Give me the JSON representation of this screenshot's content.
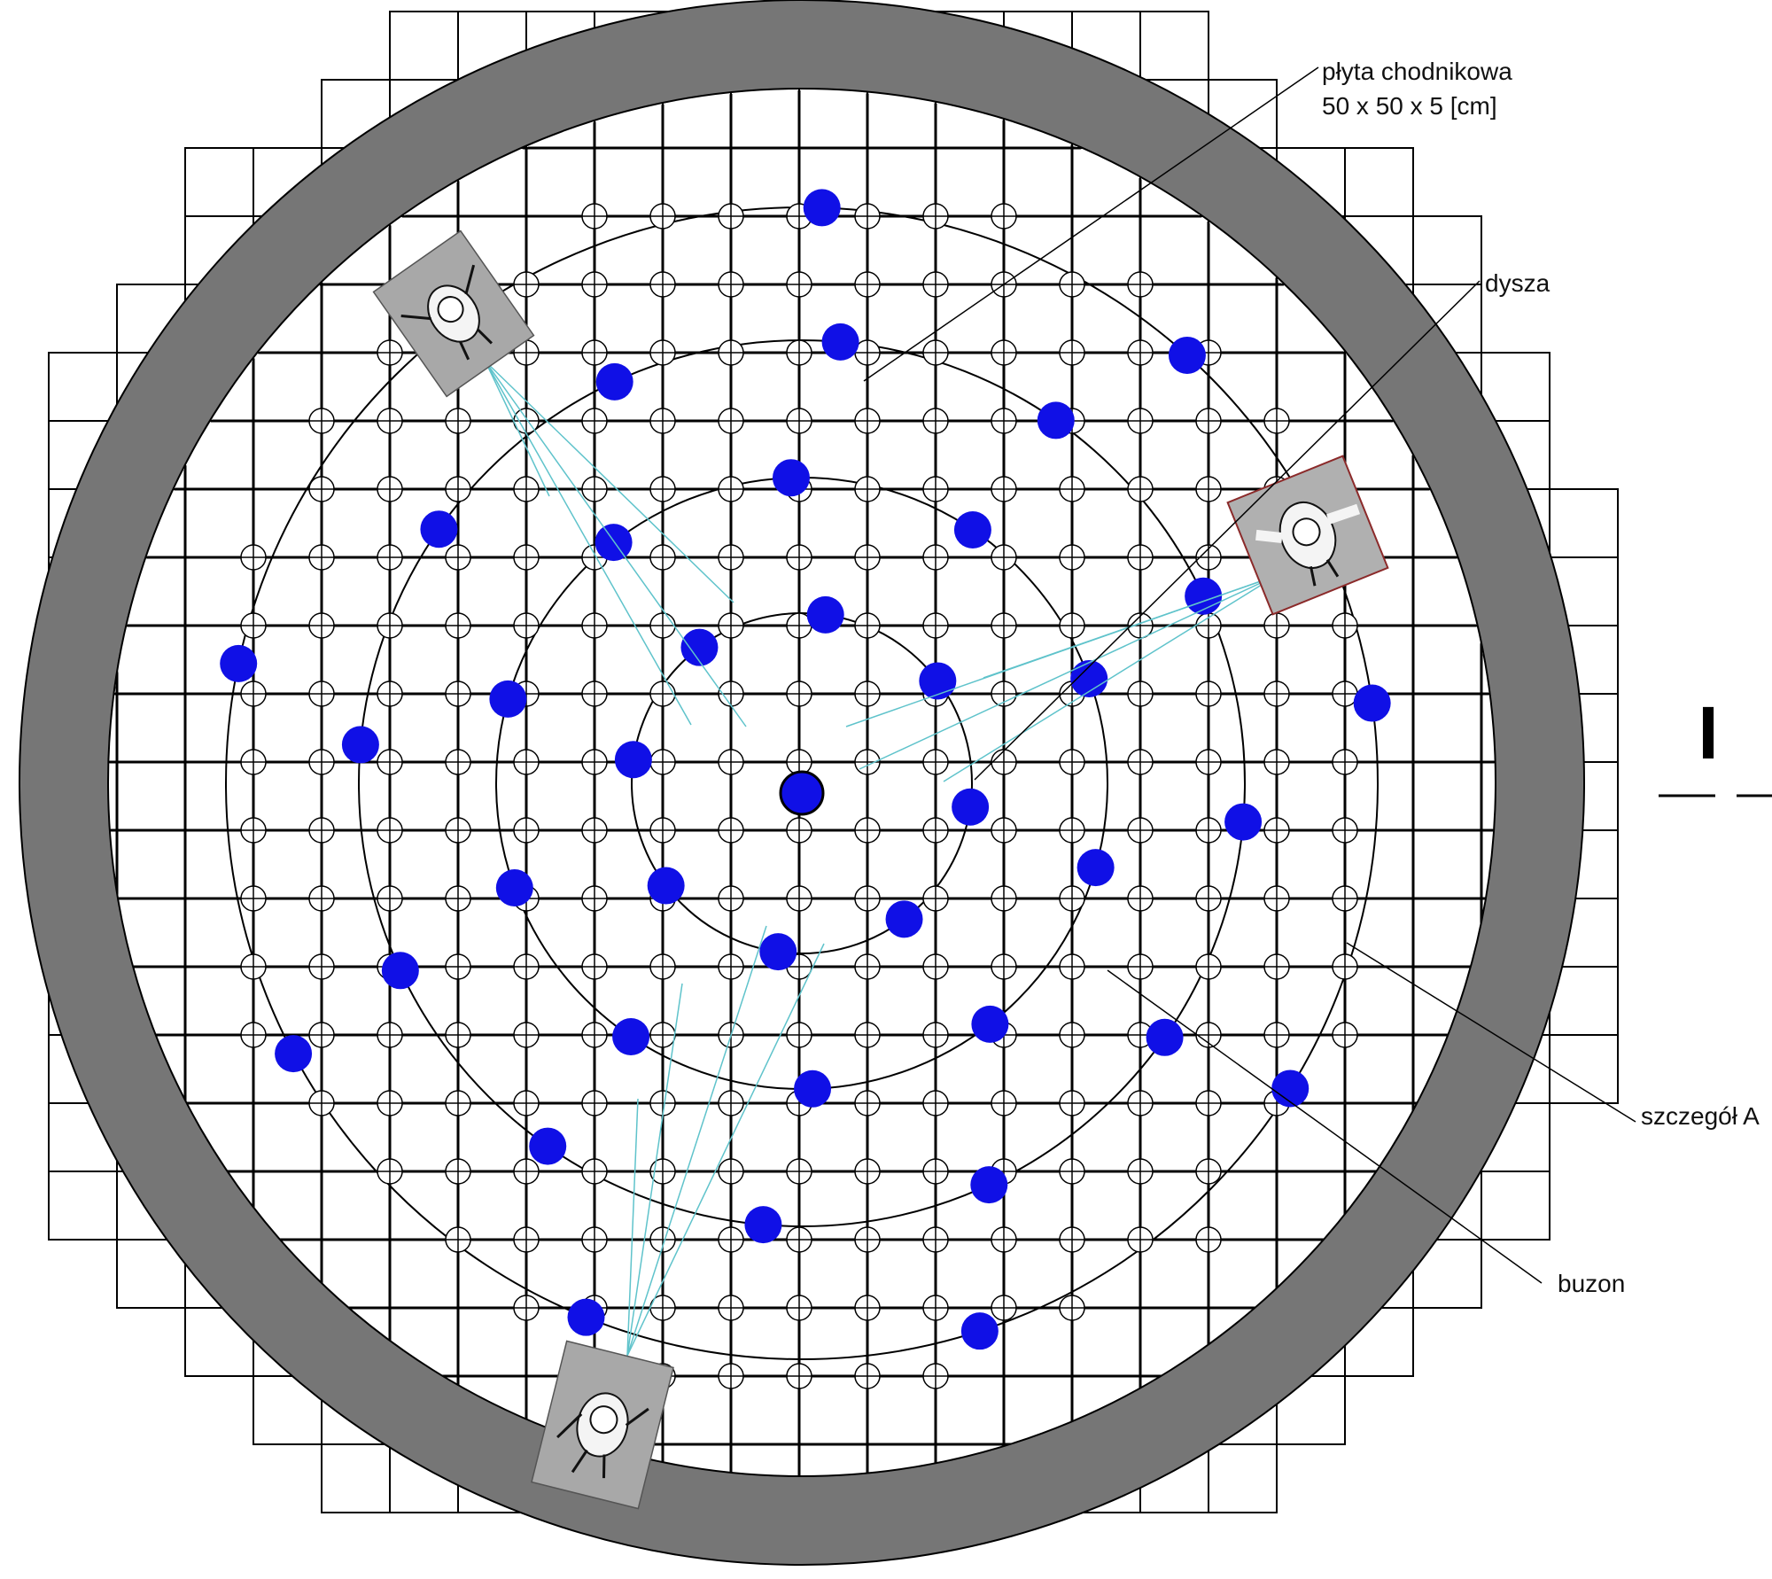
{
  "labels": {
    "slab_line1": "płyta chodnikowa",
    "slab_line2": "50 x 50 x 5 [cm]",
    "nozzle": "dysza",
    "detail": "szczegół A",
    "boulder": "buzon",
    "section": "I"
  },
  "colors": {
    "ring": "#767676",
    "jet": "#1010e6",
    "line": "#000000",
    "spray": "#5fc3cb",
    "person_bg": "#a8a8a8"
  },
  "icons": [
    "person-topview-icon"
  ]
}
